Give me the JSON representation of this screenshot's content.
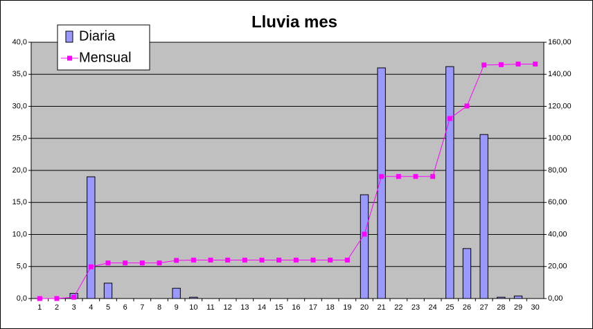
{
  "chart_data": {
    "type": "combo",
    "title": "Lluvia mes",
    "categories": [
      "1",
      "2",
      "3",
      "4",
      "5",
      "6",
      "7",
      "8",
      "9",
      "10",
      "11",
      "12",
      "13",
      "14",
      "15",
      "16",
      "17",
      "18",
      "19",
      "20",
      "21",
      "22",
      "23",
      "24",
      "25",
      "26",
      "27",
      "28",
      "29",
      "30"
    ],
    "series": [
      {
        "name": "Diaria",
        "type": "bar",
        "color": "#9999ff",
        "values": [
          0,
          0,
          0.8,
          19.0,
          2.4,
          0,
          0,
          0,
          1.6,
          0.2,
          0,
          0,
          0,
          0,
          0,
          0,
          0,
          0,
          0,
          16.2,
          36.0,
          0,
          0,
          0,
          36.2,
          7.8,
          25.6,
          0.2,
          0.4,
          0
        ]
      },
      {
        "name": "Mensual",
        "type": "line",
        "color": "#ff00ff",
        "axis": "y2",
        "values": [
          0,
          0,
          0.8,
          19.8,
          22.2,
          22.2,
          22.2,
          22.2,
          23.8,
          24.0,
          24.0,
          24.0,
          24.0,
          24.0,
          24.0,
          24.0,
          24.0,
          24.0,
          24.0,
          40.2,
          76.2,
          76.2,
          76.2,
          76.2,
          112.4,
          120.2,
          145.8,
          146.0,
          146.4,
          146.4
        ]
      }
    ],
    "ylim": [
      0,
      40
    ],
    "yticks": [
      {
        "value": 0,
        "label": "0,0"
      },
      {
        "value": 5,
        "label": "5,0"
      },
      {
        "value": 10,
        "label": "10,0"
      },
      {
        "value": 15,
        "label": "15,0"
      },
      {
        "value": 20,
        "label": "20,0"
      },
      {
        "value": 25,
        "label": "25,0"
      },
      {
        "value": 30,
        "label": "30,0"
      },
      {
        "value": 35,
        "label": "35,0"
      },
      {
        "value": 40,
        "label": "40,0"
      }
    ],
    "y2lim": [
      0,
      160
    ],
    "y2ticks": [
      {
        "value": 0,
        "label": "0,00"
      },
      {
        "value": 20,
        "label": "20,00"
      },
      {
        "value": 40,
        "label": "40,00"
      },
      {
        "value": 60,
        "label": "60,00"
      },
      {
        "value": 80,
        "label": "80,00"
      },
      {
        "value": 100,
        "label": "100,00"
      },
      {
        "value": 120,
        "label": "120,00"
      },
      {
        "value": 140,
        "label": "140,00"
      },
      {
        "value": 160,
        "label": "160,00"
      }
    ],
    "grid": true,
    "legend": "top-left"
  }
}
